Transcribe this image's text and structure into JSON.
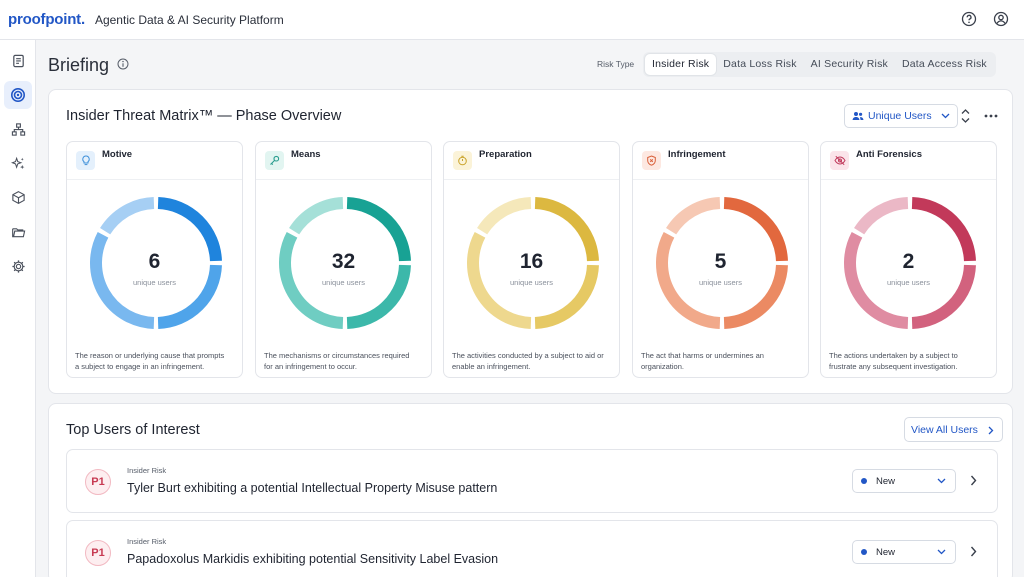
{
  "header": {
    "logo_text": "proofpoint",
    "logo_dot": ".",
    "platform_title": "Agentic Data & AI Security Platform",
    "icons": [
      "help-circle-icon",
      "user-account-icon"
    ]
  },
  "sidebar": {
    "items": [
      {
        "icon": "clipboard-icon",
        "active": false
      },
      {
        "icon": "radar-icon",
        "active": true
      },
      {
        "icon": "hierarchy-icon",
        "active": false
      },
      {
        "icon": "sparkles-icon",
        "active": false
      },
      {
        "icon": "cube-icon",
        "active": false
      },
      {
        "icon": "folder-icon",
        "active": false
      },
      {
        "icon": "settings-gear-icon",
        "active": false
      }
    ]
  },
  "page": {
    "title": "Briefing",
    "risk_type_label": "Risk Type",
    "risk_tabs": [
      {
        "label": "Insider Risk",
        "active": true
      },
      {
        "label": "Data Loss Risk",
        "active": false
      },
      {
        "label": "AI Security Risk",
        "active": false
      },
      {
        "label": "Data Access Risk",
        "active": false
      }
    ]
  },
  "matrix": {
    "title": "Insider Threat Matrix™ — Phase Overview",
    "metric_select": "Unique Users",
    "phases": [
      {
        "name": "Motive",
        "value": "6",
        "unit": "unique users",
        "desc_1": "The reason or underlying cause that prompts",
        "desc_2": "a subject to engage in an infringement.",
        "colors": [
          "#1f84dd",
          "#4fa4ea",
          "#79b8ef",
          "#a6cff4"
        ],
        "icon_bg": "#e4f0fc",
        "icon_color": "#3d8fd9",
        "icon": "lightbulb-icon"
      },
      {
        "name": "Means",
        "value": "32",
        "unit": "unique users",
        "desc_1": "The mechanisms or circumstances required",
        "desc_2": "for an infringement to occur.",
        "colors": [
          "#18a294",
          "#3cb8aa",
          "#6fcdc2",
          "#a5e0d8"
        ],
        "icon_bg": "#e2f5f1",
        "icon_color": "#2a9d8f",
        "icon": "key-icon"
      },
      {
        "name": "Preparation",
        "value": "16",
        "unit": "unique users",
        "desc_1": "The activities conducted by a subject to aid or",
        "desc_2": "enable an infringement.",
        "colors": [
          "#dcb840",
          "#e6c964",
          "#eed88e",
          "#f5e8ba"
        ],
        "icon_bg": "#fbf3d8",
        "icon_color": "#c9a227",
        "icon": "timer-icon"
      },
      {
        "name": "Infringement",
        "value": "5",
        "unit": "unique users",
        "desc_1": "The act that harms or undermines an",
        "desc_2": "organization.",
        "colors": [
          "#e2683e",
          "#eb8a63",
          "#f1a98a",
          "#f6c8b3"
        ],
        "icon_bg": "#fde8e1",
        "icon_color": "#d9603a",
        "icon": "shield-alert-icon"
      },
      {
        "name": "Anti Forensics",
        "value": "2",
        "unit": "unique users",
        "desc_1": "The actions undertaken by a subject to",
        "desc_2": "frustrate any subsequent investigation.",
        "colors": [
          "#c2395a",
          "#d2627e",
          "#df8ca2",
          "#ebb8c6"
        ],
        "icon_bg": "#fbe4ea",
        "icon_color": "#c03a5c",
        "icon": "eye-off-icon"
      }
    ]
  },
  "top_users": {
    "title": "Top Users of Interest",
    "view_all": "View All Users",
    "rows": [
      {
        "priority": "P1",
        "category": "Insider Risk",
        "text": "Tyler Burt exhibiting a potential Intellectual Property Misuse pattern",
        "status": "New"
      },
      {
        "priority": "P1",
        "category": "Insider Risk",
        "text": "Papadoxolus Markidis exhibiting potential Sensitivity Label Evasion",
        "status": "New"
      }
    ]
  }
}
